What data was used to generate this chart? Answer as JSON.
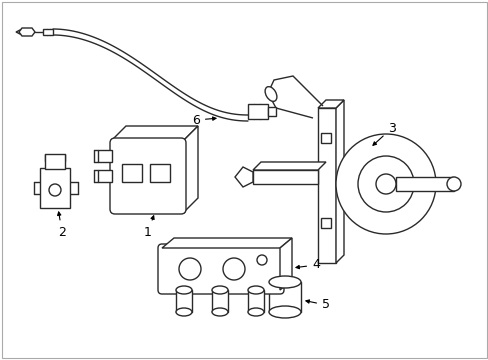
{
  "background_color": "#ffffff",
  "line_color": "#2a2a2a",
  "line_width": 1.0,
  "font_size": 9,
  "xlim": [
    0,
    489
  ],
  "ylim": [
    360,
    0
  ],
  "border_color": "#aaaaaa"
}
